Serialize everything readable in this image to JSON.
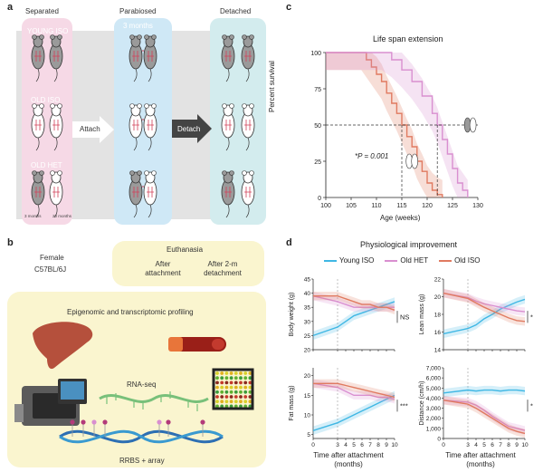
{
  "panel_a": {
    "label": "a",
    "col_separated": "Separated",
    "col_parabiosed": "Parabiosed",
    "col_months": "3 months",
    "col_detached": "Detached",
    "row_young": "YOUNG ISO",
    "row_old": "OLD ISO",
    "row_het": "OLD HET",
    "arrow_attach": "Attach",
    "arrow_detach": "Detach",
    "age_young": "3 months",
    "age_old": "20 months"
  },
  "panel_b": {
    "label": "b",
    "female": "Female",
    "strain": "C57BL/6J",
    "euthanasia": "Euthanasia",
    "after_attach": "After attachment",
    "after_detach": "After 2-m detachment",
    "profiling": "Epigenomic and transcriptomic profiling",
    "rnaseq": "RNA-seq",
    "rrbs": "RRBS + array"
  },
  "panel_c": {
    "label": "c",
    "title": "Life span extension",
    "p_value": "*P = 0.001",
    "xlabel": "Age (weeks)",
    "ylabel": "Percent survival"
  },
  "panel_d": {
    "label": "d",
    "title": "Physiological improvement",
    "legend": [
      "Young ISO",
      "Old HET",
      "Old ISO"
    ],
    "xlabel_line1": "Time after attachment",
    "xlabel_line2": "(months)",
    "sig_bw": "NS",
    "sig_lm": "*",
    "sig_fm": "***",
    "sig_dist": "*"
  },
  "colors": {
    "young": "#3fb7e4",
    "het": "#d98fd0",
    "old": "#e07a60",
    "pink_bg": "#f6d9e6",
    "blue_bg": "#cfe8f6",
    "teal_bg": "#d3ecee",
    "gray_band": "#e3e3e3",
    "yellow_bg": "#faf5cf"
  },
  "chart_data": [
    {
      "type": "line",
      "title": "Life span extension",
      "xlabel": "Age (weeks)",
      "ylabel": "Percent survival",
      "xlim": [
        100,
        130
      ],
      "ylim": [
        0,
        100
      ],
      "xticks": [
        100,
        105,
        110,
        115,
        120,
        125,
        130
      ],
      "yticks": [
        0,
        25,
        50,
        75,
        100
      ],
      "series": [
        {
          "x": [
            100,
            107,
            108,
            109,
            110,
            111,
            112,
            113,
            114,
            115,
            116,
            117,
            118,
            119,
            120,
            121,
            122,
            123
          ],
          "values": [
            100,
            100,
            95,
            90,
            85,
            80,
            72,
            65,
            58,
            50,
            42,
            35,
            25,
            18,
            10,
            5,
            2,
            0
          ]
        },
        {
          "x": [
            100,
            111,
            113,
            115,
            117,
            119,
            121,
            122,
            123,
            124,
            125,
            126,
            127,
            128
          ],
          "values": [
            100,
            100,
            95,
            88,
            80,
            70,
            58,
            50,
            40,
            30,
            20,
            10,
            5,
            0
          ]
        }
      ],
      "annotation": "*P = 0.001"
    },
    {
      "type": "line",
      "ylabel": "Body weight (g)",
      "xlabel": "Time after attachment (months)",
      "xticks": [
        0,
        3,
        4,
        5,
        6,
        7,
        8,
        9,
        10
      ],
      "yticks": [
        20,
        25,
        30,
        35,
        40,
        45
      ],
      "ylim": [
        20,
        45
      ],
      "series": [
        {
          "name": "Young ISO",
          "x": [
            0,
            3,
            4,
            5,
            6,
            7,
            8,
            9,
            10
          ],
          "values": [
            25,
            28,
            30,
            32,
            33,
            34,
            35,
            36,
            37
          ]
        },
        {
          "name": "Old HET",
          "x": [
            0,
            3,
            4,
            5,
            6,
            7,
            8,
            9,
            10
          ],
          "values": [
            39,
            37,
            36,
            35,
            35,
            35,
            35,
            35,
            35
          ]
        },
        {
          "name": "Old ISO",
          "x": [
            0,
            3,
            4,
            5,
            6,
            7,
            8,
            9,
            10
          ],
          "values": [
            39,
            39,
            38,
            37,
            36,
            36,
            35,
            35,
            34
          ]
        }
      ]
    },
    {
      "type": "line",
      "ylabel": "Lean mass (g)",
      "xlabel": "Time after attachment (months)",
      "xticks": [
        0,
        3,
        4,
        5,
        6,
        7,
        8,
        9,
        10
      ],
      "yticks": [
        14,
        16,
        18,
        20,
        22
      ],
      "ylim": [
        14,
        22
      ],
      "series": [
        {
          "name": "Young ISO",
          "x": [
            0,
            3,
            4,
            5,
            6,
            7,
            8,
            9,
            10
          ],
          "values": [
            15.8,
            16.4,
            16.8,
            17.5,
            18.0,
            18.6,
            19.0,
            19.4,
            19.7
          ]
        },
        {
          "name": "Old HET",
          "x": [
            0,
            3,
            4,
            5,
            6,
            7,
            8,
            9,
            10
          ],
          "values": [
            20.4,
            19.9,
            19.5,
            19.2,
            19.0,
            18.8,
            18.6,
            18.4,
            18.3
          ]
        },
        {
          "name": "Old ISO",
          "x": [
            0,
            3,
            4,
            5,
            6,
            7,
            8,
            9,
            10
          ],
          "values": [
            20.4,
            19.8,
            19.3,
            18.8,
            18.4,
            18.0,
            17.6,
            17.3,
            17.2
          ]
        }
      ]
    },
    {
      "type": "line",
      "ylabel": "Fat mass (g)",
      "xlabel": "Time after attachment (months)",
      "xticks": [
        0,
        3,
        4,
        5,
        6,
        7,
        8,
        9,
        10
      ],
      "yticks": [
        5,
        10,
        15,
        20
      ],
      "ylim": [
        4,
        22
      ],
      "series": [
        {
          "name": "Young ISO",
          "x": [
            0,
            3,
            4,
            5,
            6,
            7,
            8,
            9,
            10
          ],
          "values": [
            6,
            8,
            9,
            10,
            11,
            12,
            13,
            14,
            15
          ]
        },
        {
          "name": "Old HET",
          "x": [
            0,
            3,
            4,
            5,
            6,
            7,
            8,
            9,
            10
          ],
          "values": [
            18,
            17,
            16,
            15,
            15,
            15,
            14.5,
            14.5,
            14
          ]
        },
        {
          "name": "Old ISO",
          "x": [
            0,
            3,
            4,
            5,
            6,
            7,
            8,
            9,
            10
          ],
          "values": [
            18,
            18,
            17.5,
            17,
            16.5,
            16,
            15.5,
            15,
            14.5
          ]
        }
      ]
    },
    {
      "type": "line",
      "ylabel": "Distance (cm/h)",
      "xlabel": "Time after attachment (months)",
      "xticks": [
        0,
        3,
        4,
        5,
        6,
        7,
        8,
        9,
        10
      ],
      "yticks": [
        0,
        1000,
        2000,
        3000,
        4000,
        5000,
        6000,
        7000
      ],
      "ylim": [
        0,
        7000
      ],
      "series": [
        {
          "name": "Young ISO",
          "x": [
            0,
            3,
            4,
            5,
            6,
            7,
            8,
            9,
            10
          ],
          "values": [
            4500,
            4800,
            4700,
            4800,
            4800,
            4700,
            4800,
            4800,
            4700
          ]
        },
        {
          "name": "Old HET",
          "x": [
            0,
            3,
            4,
            5,
            6,
            7,
            8,
            9,
            10
          ],
          "values": [
            3800,
            3600,
            3300,
            2800,
            2200,
            1700,
            1200,
            1000,
            800
          ]
        },
        {
          "name": "Old ISO",
          "x": [
            0,
            3,
            4,
            5,
            6,
            7,
            8,
            9,
            10
          ],
          "values": [
            3800,
            3400,
            3000,
            2500,
            2000,
            1500,
            1000,
            700,
            500
          ]
        }
      ]
    }
  ]
}
